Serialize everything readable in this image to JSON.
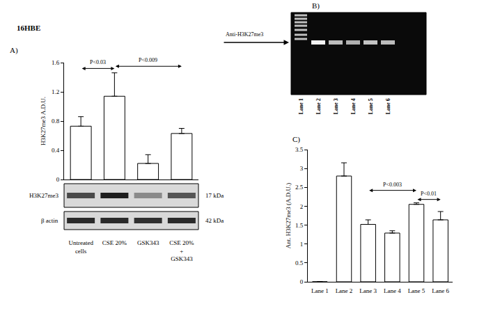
{
  "figure_label": "16HBE",
  "chart_data": [
    {
      "type": "bar",
      "title": "A)",
      "categories": [
        "Untreated cells",
        "CSE 20%",
        "GSK343",
        "CSE 20% + GSK343"
      ],
      "values": [
        0.73,
        1.14,
        0.22,
        0.63
      ],
      "errors": [
        0.13,
        0.32,
        0.12,
        0.07
      ],
      "color": "#ffffff",
      "y_label": "H3K27me3 A.D.U.",
      "ylim": [
        0,
        1.6
      ],
      "yticks": [
        0,
        0.4,
        0.8,
        1.2,
        1.6
      ],
      "grid": false,
      "annotations": [
        {
          "text": "P<0.03",
          "from": 0,
          "to": 1,
          "y": 1.52
        },
        {
          "text": "P<0.009",
          "from": 1,
          "to": 3,
          "y": 1.55
        }
      ],
      "blots": [
        {
          "label": "H3K27me3",
          "size": "17 kDa"
        },
        {
          "label": "β actin",
          "size": "42 kDa"
        }
      ]
    },
    {
      "type": "bar",
      "title": "C)",
      "categories": [
        "Lane 1",
        "Lane 2",
        "Lane 3",
        "Lane 4",
        "Lane 5",
        "Lane 6"
      ],
      "values": [
        0,
        2.8,
        1.52,
        1.29,
        2.05,
        1.64
      ],
      "errors": [
        0,
        0.35,
        0.12,
        0.06,
        0.04,
        0.22
      ],
      "color": "#ffffff",
      "y_label": "Ant. H3K27me3 (A.D.U.)",
      "ylim": [
        0,
        3.5
      ],
      "yticks": [
        0,
        0.5,
        1,
        1.5,
        2,
        2.5,
        3,
        3.5
      ],
      "grid": false,
      "annotations": [
        {
          "text": "P<0.003",
          "from": 2,
          "to": 4,
          "y": 2.42
        },
        {
          "text": "P<0.01",
          "from": 4,
          "to": 5,
          "y": 2.18
        }
      ]
    }
  ],
  "gel": {
    "title": "B)",
    "marker_label": "Anti-H3K27me3",
    "lanes": [
      "Lane 1",
      "Lane 2",
      "Lane 3",
      "Lane 4",
      "Lane 5",
      "Lane 6"
    ]
  }
}
